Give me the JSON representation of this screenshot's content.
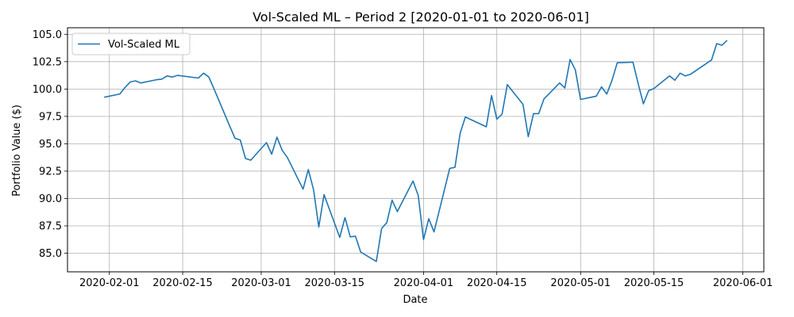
{
  "chart_data": {
    "type": "line",
    "title": "Vol-Scaled ML – Period 2 [2020-01-01 to 2020-06-01]",
    "xlabel": "Date",
    "ylabel": "Portfolio Value ($)",
    "grid": true,
    "legend_position": "top-left",
    "xlim": [
      "2020-01-24",
      "2020-06-05"
    ],
    "ylim": [
      83.3,
      105.6
    ],
    "x_ticks": [
      "2020-02-01",
      "2020-02-15",
      "2020-03-01",
      "2020-03-15",
      "2020-04-01",
      "2020-04-15",
      "2020-05-01",
      "2020-05-15",
      "2020-06-01"
    ],
    "y_ticks": [
      85.0,
      87.5,
      90.0,
      92.5,
      95.0,
      97.5,
      100.0,
      102.5,
      105.0
    ],
    "y_tick_labels": [
      "85.0",
      "87.5",
      "90.0",
      "92.5",
      "95.0",
      "97.5",
      "100.0",
      "102.5",
      "105.0"
    ],
    "series": [
      {
        "name": "Vol-Scaled ML",
        "color": "#1f77b4",
        "x": [
          "2020-01-31",
          "2020-02-03",
          "2020-02-04",
          "2020-02-05",
          "2020-02-06",
          "2020-02-07",
          "2020-02-10",
          "2020-02-11",
          "2020-02-12",
          "2020-02-13",
          "2020-02-14",
          "2020-02-18",
          "2020-02-19",
          "2020-02-20",
          "2020-02-21",
          "2020-02-24",
          "2020-02-25",
          "2020-02-26",
          "2020-02-27",
          "2020-02-28",
          "2020-03-02",
          "2020-03-03",
          "2020-03-04",
          "2020-03-05",
          "2020-03-06",
          "2020-03-09",
          "2020-03-10",
          "2020-03-11",
          "2020-03-12",
          "2020-03-13",
          "2020-03-16",
          "2020-03-17",
          "2020-03-18",
          "2020-03-19",
          "2020-03-20",
          "2020-03-23",
          "2020-03-24",
          "2020-03-25",
          "2020-03-26",
          "2020-03-27",
          "2020-03-30",
          "2020-03-31",
          "2020-04-01",
          "2020-04-02",
          "2020-04-03",
          "2020-04-06",
          "2020-04-07",
          "2020-04-08",
          "2020-04-09",
          "2020-04-13",
          "2020-04-14",
          "2020-04-15",
          "2020-04-16",
          "2020-04-17",
          "2020-04-20",
          "2020-04-21",
          "2020-04-22",
          "2020-04-23",
          "2020-04-24",
          "2020-04-27",
          "2020-04-28",
          "2020-04-29",
          "2020-04-30",
          "2020-05-01",
          "2020-05-04",
          "2020-05-05",
          "2020-05-06",
          "2020-05-07",
          "2020-05-08",
          "2020-05-11",
          "2020-05-12",
          "2020-05-13",
          "2020-05-14",
          "2020-05-15",
          "2020-05-18",
          "2020-05-19",
          "2020-05-20",
          "2020-05-21",
          "2020-05-22",
          "2020-05-26",
          "2020-05-27",
          "2020-05-28",
          "2020-05-29"
        ],
        "values": [
          99.25,
          99.55,
          100.15,
          100.65,
          100.75,
          100.55,
          100.85,
          100.9,
          101.2,
          101.1,
          101.25,
          101.0,
          101.45,
          101.1,
          100.0,
          96.6,
          95.5,
          95.35,
          93.65,
          93.5,
          95.1,
          94.05,
          95.6,
          94.4,
          93.75,
          90.85,
          92.65,
          90.8,
          87.4,
          90.35,
          86.45,
          88.25,
          86.5,
          86.55,
          85.1,
          84.25,
          87.25,
          87.8,
          89.85,
          88.8,
          91.6,
          90.25,
          86.25,
          88.15,
          86.95,
          92.75,
          92.85,
          95.95,
          97.45,
          96.55,
          99.4,
          97.25,
          97.7,
          100.4,
          98.6,
          95.65,
          97.75,
          97.75,
          99.1,
          100.55,
          100.1,
          102.7,
          101.75,
          99.05,
          99.35,
          100.2,
          99.55,
          100.8,
          102.4,
          102.45,
          100.5,
          98.65,
          99.85,
          100.05,
          101.2,
          100.8,
          101.45,
          101.2,
          101.35,
          102.65,
          104.15,
          104.0,
          104.45
        ]
      }
    ]
  }
}
